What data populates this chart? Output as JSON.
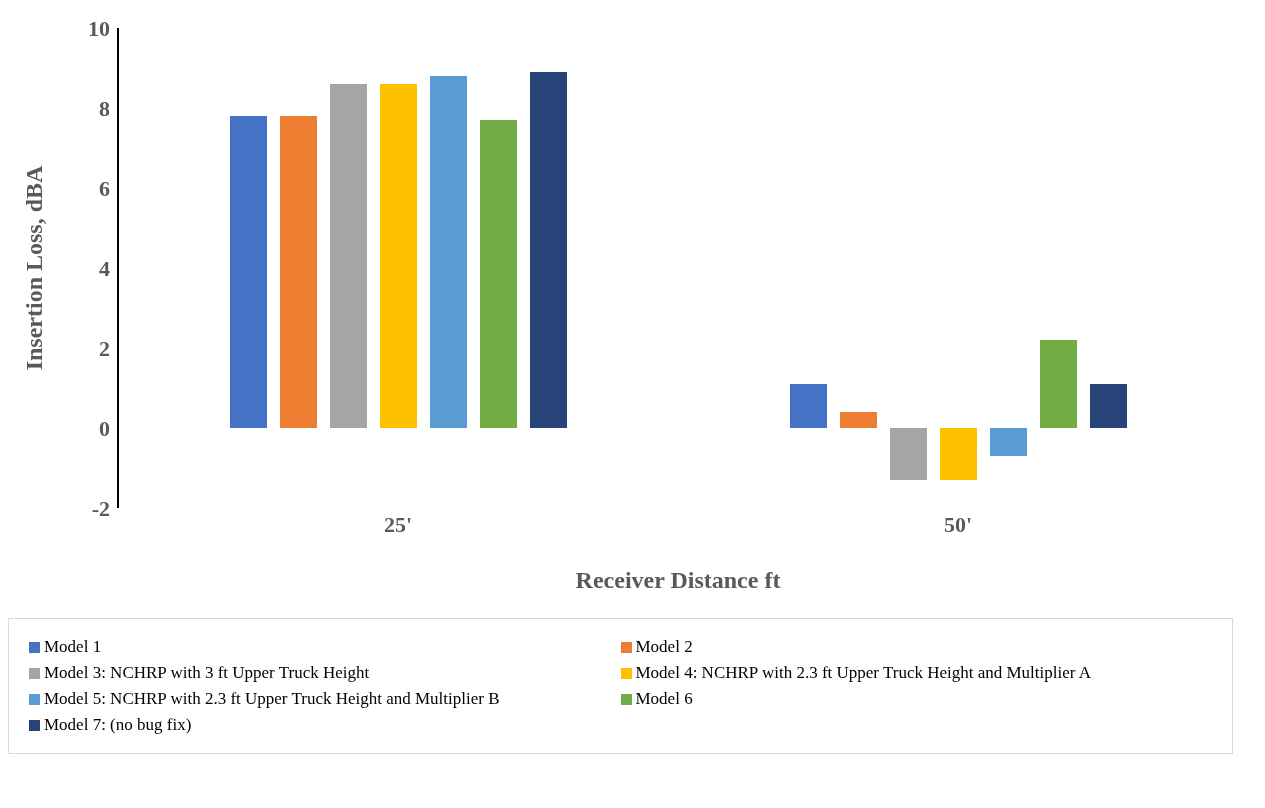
{
  "chart_data": {
    "type": "bar",
    "xlabel": "Receiver Distance ft",
    "ylabel": "Insertion Loss, dBA",
    "categories": [
      "25'",
      "50'"
    ],
    "series": [
      {
        "name": "Model 1",
        "color": "#4472c4",
        "values": [
          7.8,
          1.1
        ]
      },
      {
        "name": "Model 2",
        "color": "#ed7d31",
        "values": [
          7.8,
          0.4
        ]
      },
      {
        "name": "Model 3: NCHRP with 3 ft Upper Truck Height",
        "color": "#a5a5a5",
        "values": [
          8.6,
          -1.3
        ]
      },
      {
        "name": "Model 4: NCHRP with 2.3 ft Upper Truck Height and Multiplier A",
        "color": "#ffc000",
        "values": [
          8.6,
          -1.3
        ]
      },
      {
        "name": "Model 5: NCHRP with 2.3 ft Upper Truck Height and Multiplier B",
        "color": "#5b9bd5",
        "values": [
          8.8,
          -0.7
        ]
      },
      {
        "name": "Model 6",
        "color": "#70ad47",
        "values": [
          7.7,
          2.2
        ]
      },
      {
        "name": "Model 7: (no bug fix)",
        "color": "#264478",
        "values": [
          8.9,
          1.1
        ]
      }
    ],
    "ylim": [
      -2,
      10
    ],
    "yticks": [
      -2,
      0,
      2,
      4,
      6,
      8,
      10
    ],
    "grid": false,
    "legend": "bottom"
  }
}
